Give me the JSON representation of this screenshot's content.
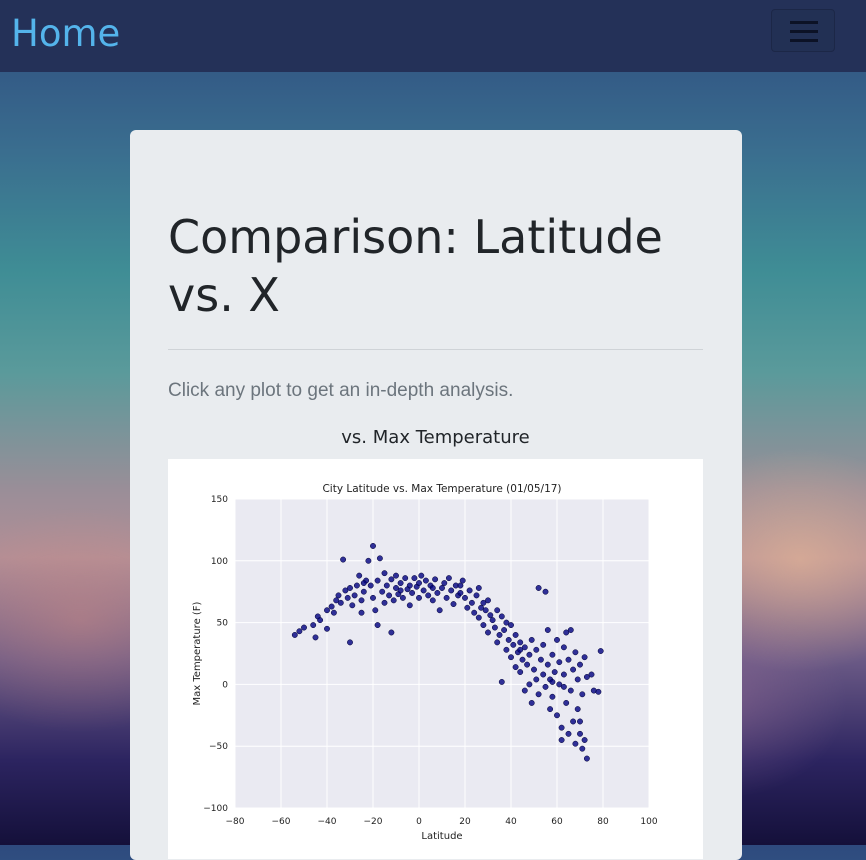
{
  "navbar": {
    "brand": "Home",
    "menu_icon": "hamburger-menu-icon"
  },
  "page": {
    "title": "Comparison: Latitude vs. X",
    "lead": "Click any plot to get an in-depth analysis.",
    "subtitle": "vs. Max Temperature"
  },
  "colors": {
    "navbar": "#243158",
    "brand": "#54b4eb",
    "card": "#e9ecef",
    "plot_bg": "#eaeaf2",
    "point": "#000080"
  },
  "chart_data": {
    "type": "scatter",
    "title": "City Latitude vs. Max Temperature (01/05/17)",
    "xlabel": "Latitude",
    "ylabel": "Max Temperature (F)",
    "xlim": [
      -80,
      100
    ],
    "ylim": [
      -100,
      150
    ],
    "xticks": [
      -80,
      -60,
      -40,
      -20,
      0,
      20,
      40,
      60,
      80,
      100
    ],
    "yticks": [
      -100,
      -50,
      0,
      50,
      100,
      150
    ],
    "grid": true,
    "points": [
      [
        -54,
        40
      ],
      [
        -52,
        43
      ],
      [
        -50,
        46
      ],
      [
        -46,
        48
      ],
      [
        -45,
        38
      ],
      [
        -44,
        55
      ],
      [
        -43,
        52
      ],
      [
        -40,
        45
      ],
      [
        -40,
        60
      ],
      [
        -38,
        63
      ],
      [
        -37,
        58
      ],
      [
        -36,
        68
      ],
      [
        -35,
        72
      ],
      [
        -34,
        66
      ],
      [
        -33,
        101
      ],
      [
        -32,
        76
      ],
      [
        -31,
        70
      ],
      [
        -30,
        34
      ],
      [
        -30,
        78
      ],
      [
        -29,
        64
      ],
      [
        -28,
        72
      ],
      [
        -27,
        80
      ],
      [
        -26,
        88
      ],
      [
        -25,
        68
      ],
      [
        -25,
        58
      ],
      [
        -24,
        75
      ],
      [
        -23,
        84
      ],
      [
        -22,
        100
      ],
      [
        -21,
        80
      ],
      [
        -20,
        70
      ],
      [
        -20,
        112
      ],
      [
        -19,
        60
      ],
      [
        -18,
        48
      ],
      [
        -18,
        84
      ],
      [
        -17,
        102
      ],
      [
        -16,
        75
      ],
      [
        -15,
        66
      ],
      [
        -15,
        90
      ],
      [
        -14,
        80
      ],
      [
        -13,
        72
      ],
      [
        -12,
        42
      ],
      [
        -12,
        85
      ],
      [
        -11,
        68
      ],
      [
        -10,
        78
      ],
      [
        -10,
        88
      ],
      [
        -9,
        73
      ],
      [
        -8,
        82
      ],
      [
        -7,
        70
      ],
      [
        -6,
        86
      ],
      [
        -5,
        77
      ],
      [
        -4,
        64
      ],
      [
        -4,
        80
      ],
      [
        -3,
        74
      ],
      [
        -2,
        86
      ],
      [
        -1,
        79
      ],
      [
        0,
        70
      ],
      [
        0,
        82
      ],
      [
        1,
        88
      ],
      [
        2,
        76
      ],
      [
        3,
        84
      ],
      [
        4,
        72
      ],
      [
        5,
        80
      ],
      [
        6,
        68
      ],
      [
        7,
        85
      ],
      [
        8,
        74
      ],
      [
        9,
        60
      ],
      [
        10,
        78
      ],
      [
        11,
        82
      ],
      [
        12,
        70
      ],
      [
        13,
        86
      ],
      [
        14,
        76
      ],
      [
        15,
        65
      ],
      [
        16,
        80
      ],
      [
        17,
        72
      ],
      [
        18,
        74
      ],
      [
        19,
        84
      ],
      [
        20,
        70
      ],
      [
        21,
        62
      ],
      [
        22,
        76
      ],
      [
        23,
        66
      ],
      [
        24,
        58
      ],
      [
        25,
        72
      ],
      [
        26,
        54
      ],
      [
        26,
        78
      ],
      [
        27,
        62
      ],
      [
        28,
        48
      ],
      [
        29,
        60
      ],
      [
        30,
        42
      ],
      [
        30,
        68
      ],
      [
        31,
        56
      ],
      [
        32,
        52
      ],
      [
        33,
        46
      ],
      [
        34,
        60
      ],
      [
        34,
        34
      ],
      [
        35,
        40
      ],
      [
        36,
        55
      ],
      [
        36,
        2
      ],
      [
        37,
        44
      ],
      [
        38,
        50
      ],
      [
        38,
        28
      ],
      [
        39,
        36
      ],
      [
        40,
        48
      ],
      [
        40,
        22
      ],
      [
        41,
        32
      ],
      [
        42,
        40
      ],
      [
        42,
        14
      ],
      [
        43,
        26
      ],
      [
        44,
        34
      ],
      [
        44,
        10
      ],
      [
        45,
        20
      ],
      [
        46,
        30
      ],
      [
        46,
        -5
      ],
      [
        47,
        16
      ],
      [
        48,
        24
      ],
      [
        48,
        0
      ],
      [
        49,
        36
      ],
      [
        49,
        -15
      ],
      [
        50,
        12
      ],
      [
        51,
        28
      ],
      [
        51,
        4
      ],
      [
        52,
        78
      ],
      [
        52,
        -8
      ],
      [
        53,
        20
      ],
      [
        54,
        8
      ],
      [
        54,
        32
      ],
      [
        55,
        -2
      ],
      [
        55,
        75
      ],
      [
        56,
        16
      ],
      [
        56,
        44
      ],
      [
        57,
        4
      ],
      [
        57,
        -20
      ],
      [
        58,
        24
      ],
      [
        58,
        -10
      ],
      [
        59,
        10
      ],
      [
        60,
        36
      ],
      [
        60,
        -25
      ],
      [
        61,
        0
      ],
      [
        61,
        18
      ],
      [
        62,
        -35
      ],
      [
        62,
        -45
      ],
      [
        63,
        30
      ],
      [
        63,
        8
      ],
      [
        64,
        -15
      ],
      [
        64,
        42
      ],
      [
        65,
        20
      ],
      [
        65,
        -40
      ],
      [
        66,
        -5
      ],
      [
        66,
        44
      ],
      [
        67,
        12
      ],
      [
        67,
        -30
      ],
      [
        68,
        -48
      ],
      [
        68,
        26
      ],
      [
        69,
        -20
      ],
      [
        69,
        4
      ],
      [
        70,
        -40
      ],
      [
        70,
        16
      ],
      [
        71,
        -52
      ],
      [
        71,
        -8
      ],
      [
        72,
        22
      ],
      [
        72,
        -45
      ],
      [
        73,
        -60
      ],
      [
        73,
        6
      ],
      [
        75,
        8
      ],
      [
        76,
        -5
      ],
      [
        78,
        -6
      ],
      [
        79,
        27
      ],
      [
        -24,
        82
      ],
      [
        -8,
        76
      ],
      [
        6,
        78
      ],
      [
        18,
        80
      ],
      [
        28,
        66
      ],
      [
        44,
        28
      ],
      [
        58,
        2
      ],
      [
        63,
        -2
      ],
      [
        70,
        -30
      ]
    ]
  }
}
